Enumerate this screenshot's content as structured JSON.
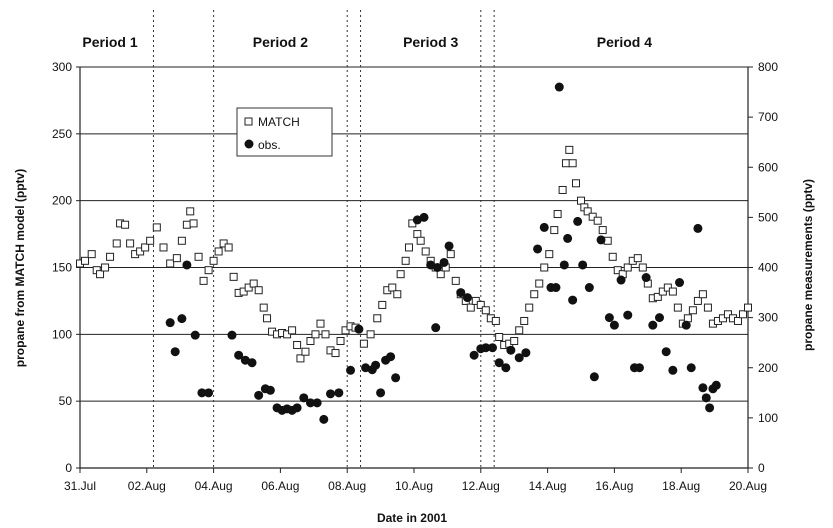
{
  "chart_data": {
    "type": "scatter",
    "xlabel": "Date in 2001",
    "ylabel_left": "propane from MATCH model (pptv)",
    "ylabel_right": "propane measurements (pptv)",
    "x_ticks": [
      "31.Jul",
      "02.Aug",
      "04.Aug",
      "06.Aug",
      "08.Aug",
      "10.Aug",
      "12.Aug",
      "14.Aug",
      "16.Aug",
      "18.Aug",
      "20.Aug"
    ],
    "xlim_days": [
      0,
      20
    ],
    "ylim_left": [
      0,
      300
    ],
    "y_ticks_left": [
      "0",
      "50",
      "100",
      "150",
      "200",
      "250",
      "300"
    ],
    "ylim_right": [
      0,
      800
    ],
    "y_ticks_right": [
      "0",
      "100",
      "200",
      "300",
      "400",
      "500",
      "600",
      "700",
      "800"
    ],
    "periods": [
      {
        "label": "Period 1",
        "center_day": 0.9
      },
      {
        "label": "Period 2",
        "center_day": 6.0
      },
      {
        "label": "Period 3",
        "center_day": 10.5
      },
      {
        "label": "Period 4",
        "center_day": 16.3
      }
    ],
    "period_boundaries_days": [
      2.2,
      4.0,
      8.0,
      8.4,
      12.0,
      12.4
    ],
    "legend": {
      "position": "top-left",
      "entries": [
        "MATCH",
        "obs."
      ]
    },
    "series": [
      {
        "name": "MATCH",
        "axis": "left",
        "marker": "open-square",
        "points": [
          [
            0.0,
            153
          ],
          [
            0.15,
            155
          ],
          [
            0.35,
            160
          ],
          [
            0.5,
            148
          ],
          [
            0.6,
            145
          ],
          [
            0.75,
            150
          ],
          [
            0.9,
            158
          ],
          [
            1.1,
            168
          ],
          [
            1.2,
            183
          ],
          [
            1.35,
            182
          ],
          [
            1.5,
            168
          ],
          [
            1.65,
            160
          ],
          [
            1.8,
            162
          ],
          [
            1.95,
            165
          ],
          [
            2.1,
            170
          ],
          [
            2.3,
            180
          ],
          [
            2.5,
            165
          ],
          [
            2.7,
            153
          ],
          [
            2.9,
            157
          ],
          [
            3.05,
            170
          ],
          [
            3.2,
            182
          ],
          [
            3.3,
            192
          ],
          [
            3.4,
            183
          ],
          [
            3.55,
            158
          ],
          [
            3.7,
            140
          ],
          [
            3.85,
            148
          ],
          [
            4.0,
            155
          ],
          [
            4.15,
            162
          ],
          [
            4.3,
            168
          ],
          [
            4.45,
            165
          ],
          [
            4.6,
            143
          ],
          [
            4.75,
            131
          ],
          [
            4.9,
            132
          ],
          [
            5.05,
            135
          ],
          [
            5.2,
            138
          ],
          [
            5.35,
            133
          ],
          [
            5.5,
            120
          ],
          [
            5.6,
            112
          ],
          [
            5.75,
            102
          ],
          [
            5.9,
            100
          ],
          [
            6.05,
            101
          ],
          [
            6.2,
            100
          ],
          [
            6.35,
            103
          ],
          [
            6.5,
            92
          ],
          [
            6.6,
            82
          ],
          [
            6.75,
            87
          ],
          [
            6.9,
            95
          ],
          [
            7.05,
            100
          ],
          [
            7.2,
            108
          ],
          [
            7.35,
            100
          ],
          [
            7.5,
            88
          ],
          [
            7.65,
            86
          ],
          [
            7.8,
            95
          ],
          [
            7.95,
            103
          ],
          [
            8.1,
            106
          ],
          [
            8.25,
            105
          ],
          [
            8.5,
            93
          ],
          [
            8.7,
            100
          ],
          [
            8.9,
            112
          ],
          [
            9.05,
            122
          ],
          [
            9.2,
            133
          ],
          [
            9.35,
            135
          ],
          [
            9.5,
            130
          ],
          [
            9.6,
            145
          ],
          [
            9.75,
            155
          ],
          [
            9.85,
            165
          ],
          [
            9.95,
            183
          ],
          [
            10.1,
            175
          ],
          [
            10.2,
            170
          ],
          [
            10.35,
            162
          ],
          [
            10.5,
            155
          ],
          [
            10.65,
            150
          ],
          [
            10.8,
            145
          ],
          [
            10.95,
            150
          ],
          [
            11.1,
            160
          ],
          [
            11.25,
            140
          ],
          [
            11.4,
            130
          ],
          [
            11.55,
            125
          ],
          [
            11.7,
            120
          ],
          [
            11.85,
            125
          ],
          [
            12.0,
            122
          ],
          [
            12.15,
            118
          ],
          [
            12.3,
            112
          ],
          [
            12.45,
            110
          ],
          [
            12.55,
            98
          ],
          [
            12.7,
            92
          ],
          [
            12.85,
            93
          ],
          [
            13.0,
            95
          ],
          [
            13.15,
            103
          ],
          [
            13.3,
            110
          ],
          [
            13.45,
            120
          ],
          [
            13.6,
            130
          ],
          [
            13.75,
            138
          ],
          [
            13.9,
            150
          ],
          [
            14.05,
            160
          ],
          [
            14.2,
            178
          ],
          [
            14.3,
            190
          ],
          [
            14.45,
            208
          ],
          [
            14.55,
            228
          ],
          [
            14.65,
            238
          ],
          [
            14.75,
            228
          ],
          [
            14.85,
            213
          ],
          [
            15.0,
            200
          ],
          [
            15.1,
            195
          ],
          [
            15.2,
            192
          ],
          [
            15.35,
            188
          ],
          [
            15.5,
            185
          ],
          [
            15.65,
            178
          ],
          [
            15.8,
            170
          ],
          [
            15.95,
            158
          ],
          [
            16.1,
            148
          ],
          [
            16.25,
            145
          ],
          [
            16.4,
            150
          ],
          [
            16.55,
            155
          ],
          [
            16.7,
            157
          ],
          [
            16.85,
            150
          ],
          [
            17.0,
            138
          ],
          [
            17.15,
            127
          ],
          [
            17.3,
            128
          ],
          [
            17.45,
            132
          ],
          [
            17.6,
            135
          ],
          [
            17.75,
            132
          ],
          [
            17.9,
            120
          ],
          [
            18.05,
            108
          ],
          [
            18.2,
            112
          ],
          [
            18.35,
            118
          ],
          [
            18.5,
            125
          ],
          [
            18.65,
            130
          ],
          [
            18.8,
            120
          ],
          [
            18.95,
            108
          ],
          [
            19.1,
            110
          ],
          [
            19.25,
            112
          ],
          [
            19.4,
            115
          ],
          [
            19.55,
            112
          ],
          [
            19.7,
            110
          ],
          [
            19.85,
            115
          ],
          [
            20.0,
            120
          ]
        ]
      },
      {
        "name": "obs.",
        "axis": "right",
        "marker": "filled-circle",
        "points": [
          [
            2.7,
            290
          ],
          [
            2.85,
            232
          ],
          [
            3.05,
            298
          ],
          [
            3.2,
            405
          ],
          [
            3.45,
            265
          ],
          [
            3.65,
            150
          ],
          [
            3.85,
            150
          ],
          [
            4.55,
            265
          ],
          [
            4.75,
            225
          ],
          [
            4.95,
            215
          ],
          [
            5.15,
            210
          ],
          [
            5.35,
            145
          ],
          [
            5.55,
            158
          ],
          [
            5.7,
            155
          ],
          [
            5.9,
            120
          ],
          [
            6.05,
            115
          ],
          [
            6.2,
            118
          ],
          [
            6.35,
            115
          ],
          [
            6.5,
            120
          ],
          [
            6.7,
            140
          ],
          [
            6.9,
            130
          ],
          [
            7.1,
            130
          ],
          [
            7.3,
            97
          ],
          [
            7.5,
            148
          ],
          [
            7.75,
            150
          ],
          [
            8.1,
            195
          ],
          [
            8.35,
            277
          ],
          [
            8.55,
            200
          ],
          [
            8.75,
            196
          ],
          [
            8.85,
            205
          ],
          [
            9.0,
            150
          ],
          [
            9.15,
            215
          ],
          [
            9.3,
            222
          ],
          [
            9.45,
            180
          ],
          [
            10.1,
            495
          ],
          [
            10.3,
            500
          ],
          [
            10.5,
            405
          ],
          [
            10.7,
            400
          ],
          [
            10.9,
            410
          ],
          [
            11.05,
            443
          ],
          [
            10.65,
            280
          ],
          [
            11.4,
            350
          ],
          [
            11.6,
            340
          ],
          [
            11.8,
            225
          ],
          [
            12.0,
            238
          ],
          [
            12.15,
            240
          ],
          [
            12.35,
            240
          ],
          [
            12.55,
            210
          ],
          [
            12.75,
            200
          ],
          [
            12.9,
            235
          ],
          [
            13.15,
            220
          ],
          [
            13.35,
            230
          ],
          [
            13.7,
            437
          ],
          [
            13.9,
            480
          ],
          [
            14.1,
            360
          ],
          [
            14.25,
            360
          ],
          [
            14.35,
            760
          ],
          [
            14.5,
            405
          ],
          [
            14.6,
            458
          ],
          [
            14.75,
            335
          ],
          [
            14.9,
            492
          ],
          [
            15.05,
            405
          ],
          [
            15.25,
            360
          ],
          [
            15.4,
            182
          ],
          [
            15.6,
            455
          ],
          [
            15.85,
            300
          ],
          [
            16.0,
            285
          ],
          [
            16.2,
            375
          ],
          [
            16.4,
            305
          ],
          [
            16.6,
            200
          ],
          [
            16.75,
            200
          ],
          [
            16.95,
            380
          ],
          [
            17.15,
            285
          ],
          [
            17.35,
            300
          ],
          [
            17.55,
            232
          ],
          [
            17.75,
            195
          ],
          [
            17.95,
            370
          ],
          [
            18.15,
            285
          ],
          [
            18.3,
            200
          ],
          [
            18.5,
            478
          ],
          [
            18.65,
            160
          ],
          [
            18.75,
            140
          ],
          [
            18.85,
            120
          ],
          [
            18.95,
            158
          ],
          [
            19.05,
            165
          ]
        ]
      }
    ]
  }
}
